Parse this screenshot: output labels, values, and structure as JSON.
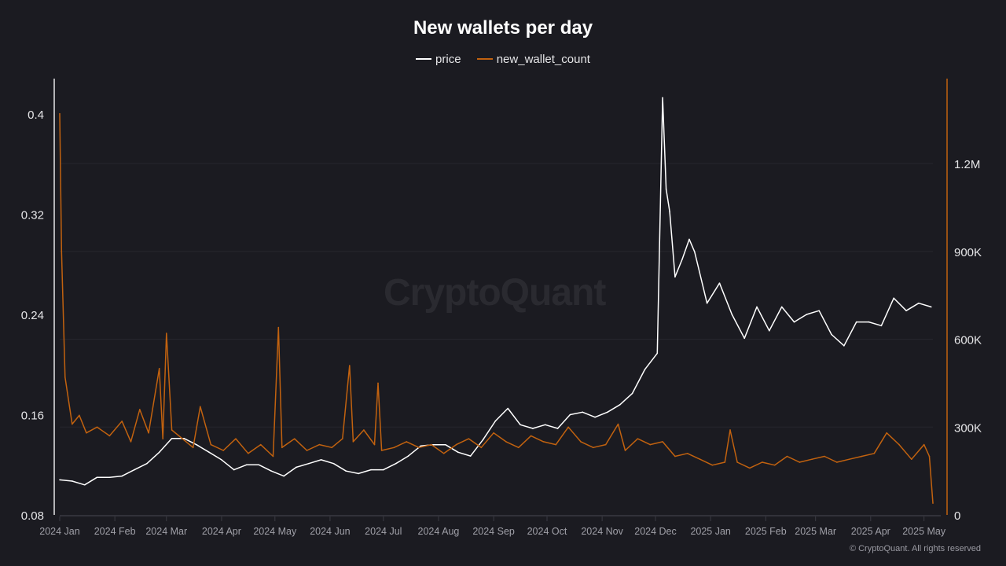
{
  "chart_data": {
    "type": "line",
    "title": "New wallets per day",
    "legend_position": "top",
    "grid": true,
    "watermark": "CryptoQuant",
    "copyright": "© CryptoQuant. All rights reserved",
    "colors": {
      "price": "#ffffff",
      "new_wallet_count": "#c2620f",
      "background": "#1b1b21"
    },
    "x_ticks": [
      "2024 Jan",
      "2024 Feb",
      "2024 Mar",
      "2024 Apr",
      "2024 May",
      "2024 Jun",
      "2024 Jul",
      "2024 Aug",
      "2024 Sep",
      "2024 Oct",
      "2024 Nov",
      "2024 Dec",
      "2025 Jan",
      "2025 Feb",
      "2025 Mar",
      "2025 Apr",
      "2025 May"
    ],
    "x_tick_dates": [
      "2024-01-01",
      "2024-02-01",
      "2024-03-01",
      "2024-04-01",
      "2024-05-01",
      "2024-06-01",
      "2024-07-01",
      "2024-08-01",
      "2024-09-01",
      "2024-10-01",
      "2024-11-01",
      "2024-12-01",
      "2025-01-01",
      "2025-02-01",
      "2025-03-01",
      "2025-04-01",
      "2025-05-01"
    ],
    "xlim": [
      "2024-01-01",
      "2025-05-06"
    ],
    "y_left": {
      "ticks": [
        "0.08",
        "0.16",
        "0.24",
        "0.32",
        "0.4"
      ],
      "ylim": [
        0.08,
        0.42
      ]
    },
    "y_right": {
      "ticks": [
        "0",
        "300K",
        "600K",
        "900K",
        "1.2M"
      ],
      "ylim": [
        0,
        1480000
      ]
    },
    "series": [
      {
        "name": "price",
        "axis": "left",
        "points": [
          [
            "2024-01-01",
            0.108
          ],
          [
            "2024-01-08",
            0.107
          ],
          [
            "2024-01-15",
            0.104
          ],
          [
            "2024-01-22",
            0.11
          ],
          [
            "2024-01-29",
            0.11
          ],
          [
            "2024-02-05",
            0.111
          ],
          [
            "2024-02-12",
            0.116
          ],
          [
            "2024-02-19",
            0.121
          ],
          [
            "2024-02-26",
            0.13
          ],
          [
            "2024-03-04",
            0.141
          ],
          [
            "2024-03-11",
            0.141
          ],
          [
            "2024-03-18",
            0.136
          ],
          [
            "2024-03-25",
            0.13
          ],
          [
            "2024-04-01",
            0.124
          ],
          [
            "2024-04-08",
            0.116
          ],
          [
            "2024-04-15",
            0.12
          ],
          [
            "2024-04-22",
            0.12
          ],
          [
            "2024-04-29",
            0.115
          ],
          [
            "2024-05-06",
            0.111
          ],
          [
            "2024-05-13",
            0.118
          ],
          [
            "2024-05-20",
            0.121
          ],
          [
            "2024-05-27",
            0.124
          ],
          [
            "2024-06-03",
            0.121
          ],
          [
            "2024-06-10",
            0.115
          ],
          [
            "2024-06-17",
            0.113
          ],
          [
            "2024-06-24",
            0.116
          ],
          [
            "2024-07-01",
            0.116
          ],
          [
            "2024-07-08",
            0.121
          ],
          [
            "2024-07-15",
            0.127
          ],
          [
            "2024-07-22",
            0.135
          ],
          [
            "2024-07-29",
            0.136
          ],
          [
            "2024-08-05",
            0.136
          ],
          [
            "2024-08-12",
            0.13
          ],
          [
            "2024-08-19",
            0.127
          ],
          [
            "2024-08-26",
            0.14
          ],
          [
            "2024-09-02",
            0.155
          ],
          [
            "2024-09-09",
            0.165
          ],
          [
            "2024-09-16",
            0.152
          ],
          [
            "2024-09-23",
            0.149
          ],
          [
            "2024-09-30",
            0.152
          ],
          [
            "2024-10-07",
            0.149
          ],
          [
            "2024-10-14",
            0.16
          ],
          [
            "2024-10-21",
            0.162
          ],
          [
            "2024-10-28",
            0.158
          ],
          [
            "2024-11-04",
            0.162
          ],
          [
            "2024-11-11",
            0.168
          ],
          [
            "2024-11-18",
            0.177
          ],
          [
            "2024-11-25",
            0.196
          ],
          [
            "2024-12-02",
            0.209
          ],
          [
            "2024-12-05",
            0.413
          ],
          [
            "2024-12-07",
            0.34
          ],
          [
            "2024-12-09",
            0.322
          ],
          [
            "2024-12-12",
            0.27
          ],
          [
            "2024-12-16",
            0.284
          ],
          [
            "2024-12-20",
            0.3
          ],
          [
            "2024-12-23",
            0.29
          ],
          [
            "2024-12-30",
            0.249
          ],
          [
            "2025-01-06",
            0.265
          ],
          [
            "2025-01-13",
            0.24
          ],
          [
            "2025-01-20",
            0.221
          ],
          [
            "2025-01-27",
            0.246
          ],
          [
            "2025-02-03",
            0.227
          ],
          [
            "2025-02-10",
            0.246
          ],
          [
            "2025-02-17",
            0.234
          ],
          [
            "2025-02-24",
            0.24
          ],
          [
            "2025-03-03",
            0.243
          ],
          [
            "2025-03-10",
            0.224
          ],
          [
            "2025-03-17",
            0.215
          ],
          [
            "2025-03-24",
            0.234
          ],
          [
            "2025-03-31",
            0.234
          ],
          [
            "2025-04-07",
            0.231
          ],
          [
            "2025-04-14",
            0.253
          ],
          [
            "2025-04-21",
            0.243
          ],
          [
            "2025-04-28",
            0.249
          ],
          [
            "2025-05-05",
            0.246
          ]
        ]
      },
      {
        "name": "new_wallet_count",
        "axis": "right",
        "points": [
          [
            "2024-01-01",
            1370000
          ],
          [
            "2024-01-02",
            900000
          ],
          [
            "2024-01-04",
            470000
          ],
          [
            "2024-01-08",
            310000
          ],
          [
            "2024-01-12",
            340000
          ],
          [
            "2024-01-16",
            280000
          ],
          [
            "2024-01-22",
            300000
          ],
          [
            "2024-01-29",
            270000
          ],
          [
            "2024-02-05",
            320000
          ],
          [
            "2024-02-10",
            250000
          ],
          [
            "2024-02-15",
            360000
          ],
          [
            "2024-02-20",
            280000
          ],
          [
            "2024-02-26",
            500000
          ],
          [
            "2024-02-28",
            260000
          ],
          [
            "2024-03-01",
            620000
          ],
          [
            "2024-03-04",
            290000
          ],
          [
            "2024-03-10",
            260000
          ],
          [
            "2024-03-16",
            230000
          ],
          [
            "2024-03-20",
            370000
          ],
          [
            "2024-03-26",
            240000
          ],
          [
            "2024-04-02",
            220000
          ],
          [
            "2024-04-09",
            260000
          ],
          [
            "2024-04-16",
            210000
          ],
          [
            "2024-04-23",
            240000
          ],
          [
            "2024-04-30",
            200000
          ],
          [
            "2024-05-03",
            640000
          ],
          [
            "2024-05-05",
            230000
          ],
          [
            "2024-05-12",
            260000
          ],
          [
            "2024-05-19",
            220000
          ],
          [
            "2024-05-26",
            240000
          ],
          [
            "2024-06-02",
            230000
          ],
          [
            "2024-06-08",
            260000
          ],
          [
            "2024-06-12",
            510000
          ],
          [
            "2024-06-14",
            250000
          ],
          [
            "2024-06-20",
            290000
          ],
          [
            "2024-06-26",
            240000
          ],
          [
            "2024-06-28",
            450000
          ],
          [
            "2024-06-30",
            220000
          ],
          [
            "2024-07-07",
            230000
          ],
          [
            "2024-07-14",
            250000
          ],
          [
            "2024-07-21",
            230000
          ],
          [
            "2024-07-28",
            240000
          ],
          [
            "2024-08-04",
            210000
          ],
          [
            "2024-08-11",
            240000
          ],
          [
            "2024-08-18",
            260000
          ],
          [
            "2024-08-25",
            230000
          ],
          [
            "2024-09-01",
            280000
          ],
          [
            "2024-09-08",
            250000
          ],
          [
            "2024-09-15",
            230000
          ],
          [
            "2024-09-22",
            270000
          ],
          [
            "2024-09-29",
            250000
          ],
          [
            "2024-10-06",
            240000
          ],
          [
            "2024-10-13",
            300000
          ],
          [
            "2024-10-20",
            250000
          ],
          [
            "2024-10-27",
            230000
          ],
          [
            "2024-11-03",
            240000
          ],
          [
            "2024-11-10",
            310000
          ],
          [
            "2024-11-14",
            220000
          ],
          [
            "2024-11-21",
            260000
          ],
          [
            "2024-11-28",
            240000
          ],
          [
            "2024-12-05",
            250000
          ],
          [
            "2024-12-12",
            200000
          ],
          [
            "2024-12-19",
            210000
          ],
          [
            "2024-12-26",
            190000
          ],
          [
            "2025-01-02",
            170000
          ],
          [
            "2025-01-09",
            180000
          ],
          [
            "2025-01-12",
            290000
          ],
          [
            "2025-01-16",
            180000
          ],
          [
            "2025-01-23",
            160000
          ],
          [
            "2025-01-30",
            180000
          ],
          [
            "2025-02-06",
            170000
          ],
          [
            "2025-02-13",
            200000
          ],
          [
            "2025-02-20",
            180000
          ],
          [
            "2025-02-27",
            190000
          ],
          [
            "2025-03-06",
            200000
          ],
          [
            "2025-03-13",
            180000
          ],
          [
            "2025-03-20",
            190000
          ],
          [
            "2025-03-27",
            200000
          ],
          [
            "2025-04-03",
            210000
          ],
          [
            "2025-04-10",
            280000
          ],
          [
            "2025-04-17",
            240000
          ],
          [
            "2025-04-24",
            190000
          ],
          [
            "2025-05-01",
            240000
          ],
          [
            "2025-05-04",
            200000
          ],
          [
            "2025-05-06",
            40000
          ]
        ]
      }
    ]
  }
}
